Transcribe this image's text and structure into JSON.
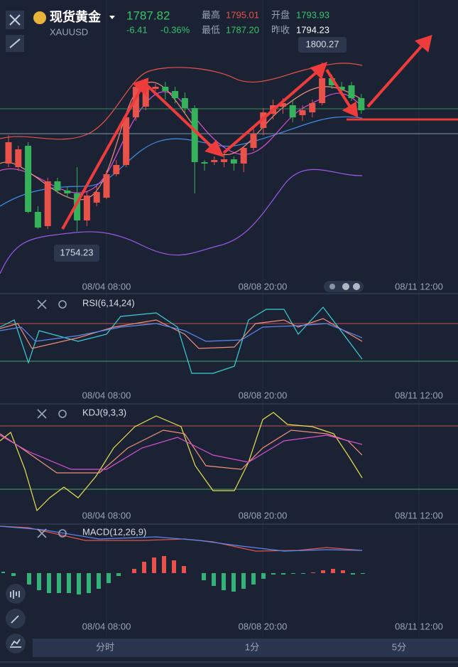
{
  "header": {
    "name": "现货黄金",
    "symbol": "XAUUSD",
    "price": "1787.82",
    "change": "-6.41",
    "change_pct": "-0.36%",
    "high_label": "最高",
    "high": "1795.01",
    "open_label": "开盘",
    "open": "1793.93",
    "low_label": "最低",
    "low": "1787.20",
    "prev_label": "昨收",
    "prev_close": "1794.23"
  },
  "chart_data": {
    "type": "candlestick",
    "ylim": [
      1741.68,
      1817.34
    ],
    "x_labels": [
      "08/04 08:00",
      "08/08 20:00",
      "08/11 12:00"
    ],
    "annotations": [
      {
        "label": "1800.27",
        "value": 1800.27
      },
      {
        "label": "1754.23",
        "value": 1754.23
      }
    ],
    "up_color": "#e8524a",
    "down_color": "#35b25a",
    "candles": [
      [
        1772.72,
        1780.48,
        1771.75,
        1778.54
      ],
      [
        1771.75,
        1777.57,
        1770.78,
        1776.6
      ],
      [
        1777.57,
        1778.54,
        1759.14,
        1759.53
      ],
      [
        1759.53,
        1761.08,
        1754.87,
        1755.26
      ],
      [
        1755.65,
        1768.84,
        1754.87,
        1767.87
      ],
      [
        1767.87,
        1768.84,
        1764.57,
        1765.35
      ],
      [
        1765.35,
        1766.51,
        1763.41,
        1764.57
      ],
      [
        1764.57,
        1771.75,
        1754.23,
        1757.2
      ],
      [
        1757.2,
        1764.96,
        1755.65,
        1763.99
      ],
      [
        1762.05,
        1766.51,
        1761.08,
        1764.96
      ],
      [
        1763.41,
        1770.78,
        1763.02,
        1769.81
      ],
      [
        1769.81,
        1773.69,
        1769.23,
        1772.33
      ],
      [
        1772.33,
        1786.3,
        1771.75,
        1785.33
      ],
      [
        1785.33,
        1794.45,
        1784.36,
        1793.67
      ],
      [
        1788.24,
        1795.61,
        1787.27,
        1794.06
      ],
      [
        1793.09,
        1794.45,
        1792.51,
        1793.67
      ],
      [
        1793.67,
        1795.03,
        1790.18,
        1792.51
      ],
      [
        1792.51,
        1793.67,
        1789.21,
        1790.57
      ],
      [
        1790.57,
        1792.12,
        1786.3,
        1787.85
      ],
      [
        1787.85,
        1788.63,
        1764.57,
        1773.11
      ],
      [
        1773.11,
        1773.69,
        1770.78,
        1772.72
      ],
      [
        1773.11,
        1774.66,
        1772.33,
        1773.69
      ],
      [
        1773.11,
        1775.05,
        1771.75,
        1773.88
      ],
      [
        1773.88,
        1774.66,
        1770.78,
        1772.72
      ],
      [
        1772.72,
        1777.57,
        1770.39,
        1776.99
      ],
      [
        1776.99,
        1782.42,
        1776.21,
        1780.87
      ],
      [
        1782.42,
        1787.85,
        1780.48,
        1786.69
      ],
      [
        1786.3,
        1790.18,
        1784.75,
        1788.63
      ],
      [
        1788.24,
        1790.57,
        1786.3,
        1789.21
      ],
      [
        1788.63,
        1790.18,
        1783.97,
        1785.33
      ],
      [
        1785.91,
        1788.63,
        1784.36,
        1787.27
      ],
      [
        1786.69,
        1790.18,
        1785.33,
        1789.21
      ],
      [
        1789.21,
        1800.27,
        1788.63,
        1796.0
      ],
      [
        1796.0,
        1796.97,
        1793.09,
        1794.06
      ],
      [
        1793.67,
        1795.03,
        1792.12,
        1792.9
      ],
      [
        1794.06,
        1795.03,
        1789.79,
        1790.57
      ],
      [
        1790.57,
        1791.73,
        1786.3,
        1787.27
      ]
    ]
  },
  "indicators": {
    "rsi": "RSI(6,14,24)",
    "kdj": "KDJ(9,3,3)",
    "macd": "MACD(12,26,9)"
  },
  "tabs": [
    "分时",
    "1分",
    "5分"
  ]
}
